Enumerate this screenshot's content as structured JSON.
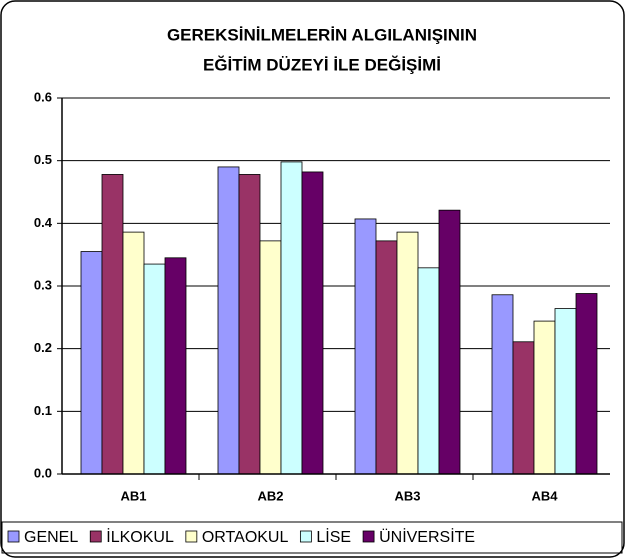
{
  "chart_data": {
    "type": "bar",
    "title": [
      "GEREKSİNİLMELERİN ALGILANIŞININ",
      "EĞİTİM DÜZEYİ İLE DEĞİŞİMİ"
    ],
    "categories": [
      "AB1",
      "AB2",
      "AB3",
      "AB4"
    ],
    "series": [
      {
        "name": "GENEL",
        "color": "#9999ff",
        "values": [
          0.355,
          0.49,
          0.407,
          0.286
        ]
      },
      {
        "name": "İLKOKUL",
        "color": "#993366",
        "values": [
          0.478,
          0.478,
          0.372,
          0.211
        ]
      },
      {
        "name": "ORTAOKUL",
        "color": "#ffffcc",
        "values": [
          0.386,
          0.372,
          0.386,
          0.244
        ]
      },
      {
        "name": "LİSE",
        "color": "#ccffff",
        "values": [
          0.335,
          0.498,
          0.329,
          0.264
        ]
      },
      {
        "name": "ÜNİVERSİTE",
        "color": "#660066",
        "values": [
          0.345,
          0.482,
          0.421,
          0.288
        ]
      }
    ],
    "ylim": [
      0,
      0.6
    ],
    "yticks": [
      {
        "value": 0,
        "label": "0.0"
      },
      0.1,
      0.2,
      0.3,
      0.4,
      0.5,
      0.6
    ],
    "grid": true,
    "legend": "bottom"
  }
}
